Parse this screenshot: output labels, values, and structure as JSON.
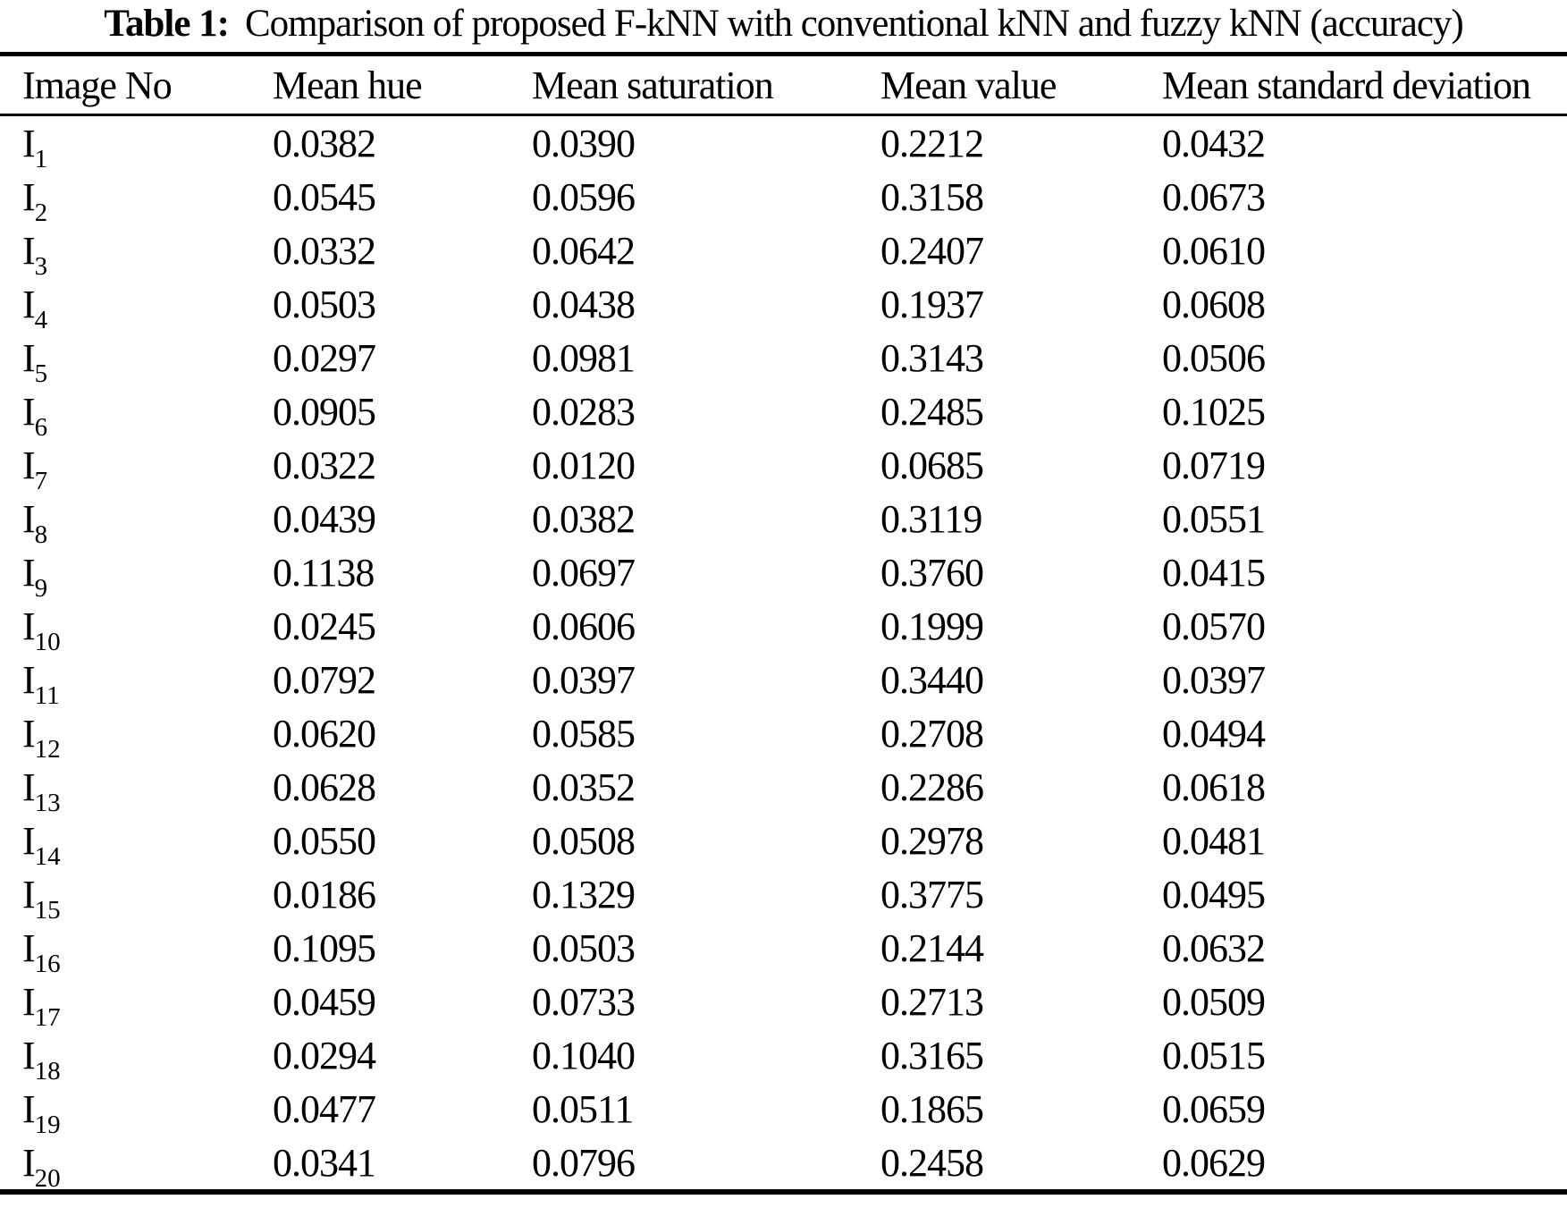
{
  "page": {
    "title_label": "Table 1:",
    "title_text": "Comparison of proposed F-kNN with conventional kNN and fuzzy kNN (accuracy)"
  },
  "table": {
    "columns": [
      "Image No",
      "Mean hue",
      "Mean saturation",
      "Mean value",
      "Mean standard deviation"
    ],
    "rows": [
      {
        "label": {
          "base": "I",
          "sub": "1"
        },
        "values": [
          "0.0382",
          "0.0390",
          "0.2212",
          "0.0432"
        ]
      },
      {
        "label": {
          "base": "I",
          "sub": "2"
        },
        "values": [
          "0.0545",
          "0.0596",
          "0.3158",
          "0.0673"
        ]
      },
      {
        "label": {
          "base": "I",
          "sub": "3"
        },
        "values": [
          "0.0332",
          "0.0642",
          "0.2407",
          "0.0610"
        ]
      },
      {
        "label": {
          "base": "I",
          "sub": "4"
        },
        "values": [
          "0.0503",
          "0.0438",
          "0.1937",
          "0.0608"
        ]
      },
      {
        "label": {
          "base": "I",
          "sub": "5"
        },
        "values": [
          "0.0297",
          "0.0981",
          "0.3143",
          "0.0506"
        ]
      },
      {
        "label": {
          "base": "I",
          "sub": "6"
        },
        "values": [
          "0.0905",
          "0.0283",
          "0.2485",
          "0.1025"
        ]
      },
      {
        "label": {
          "base": "I",
          "sub": "7"
        },
        "values": [
          "0.0322",
          "0.0120",
          "0.0685",
          "0.0719"
        ]
      },
      {
        "label": {
          "base": "I",
          "sub": "8"
        },
        "values": [
          "0.0439",
          "0.0382",
          "0.3119",
          "0.0551"
        ]
      },
      {
        "label": {
          "base": "I",
          "sub": "9"
        },
        "values": [
          "0.1138",
          "0.0697",
          "0.3760",
          "0.0415"
        ]
      },
      {
        "label": {
          "base": "I",
          "sub": "10"
        },
        "values": [
          "0.0245",
          "0.0606",
          "0.1999",
          "0.0570"
        ]
      },
      {
        "label": {
          "base": "I",
          "sub": "11"
        },
        "values": [
          "0.0792",
          "0.0397",
          "0.3440",
          "0.0397"
        ]
      },
      {
        "label": {
          "base": "I",
          "sub": "12"
        },
        "values": [
          "0.0620",
          "0.0585",
          "0.2708",
          "0.0494"
        ]
      },
      {
        "label": {
          "base": "I",
          "sub": "13"
        },
        "values": [
          "0.0628",
          "0.0352",
          "0.2286",
          "0.0618"
        ]
      },
      {
        "label": {
          "base": "I",
          "sub": "14"
        },
        "values": [
          "0.0550",
          "0.0508",
          "0.2978",
          "0.0481"
        ]
      },
      {
        "label": {
          "base": "I",
          "sub": "15"
        },
        "values": [
          "0.0186",
          "0.1329",
          "0.3775",
          "0.0495"
        ]
      },
      {
        "label": {
          "base": "I",
          "sub": "16"
        },
        "values": [
          "0.1095",
          "0.0503",
          "0.2144",
          "0.0632"
        ]
      },
      {
        "label": {
          "base": "I",
          "sub": "17"
        },
        "values": [
          "0.0459",
          "0.0733",
          "0.2713",
          "0.0509"
        ]
      },
      {
        "label": {
          "base": "I",
          "sub": "18"
        },
        "values": [
          "0.0294",
          "0.1040",
          "0.3165",
          "0.0515"
        ]
      },
      {
        "label": {
          "base": "I",
          "sub": "19"
        },
        "values": [
          "0.0477",
          "0.0511",
          "0.1865",
          "0.0659"
        ]
      },
      {
        "label": {
          "base": "I",
          "sub": "20"
        },
        "values": [
          "0.0341",
          "0.0796",
          "0.2458",
          "0.0629"
        ]
      }
    ]
  }
}
